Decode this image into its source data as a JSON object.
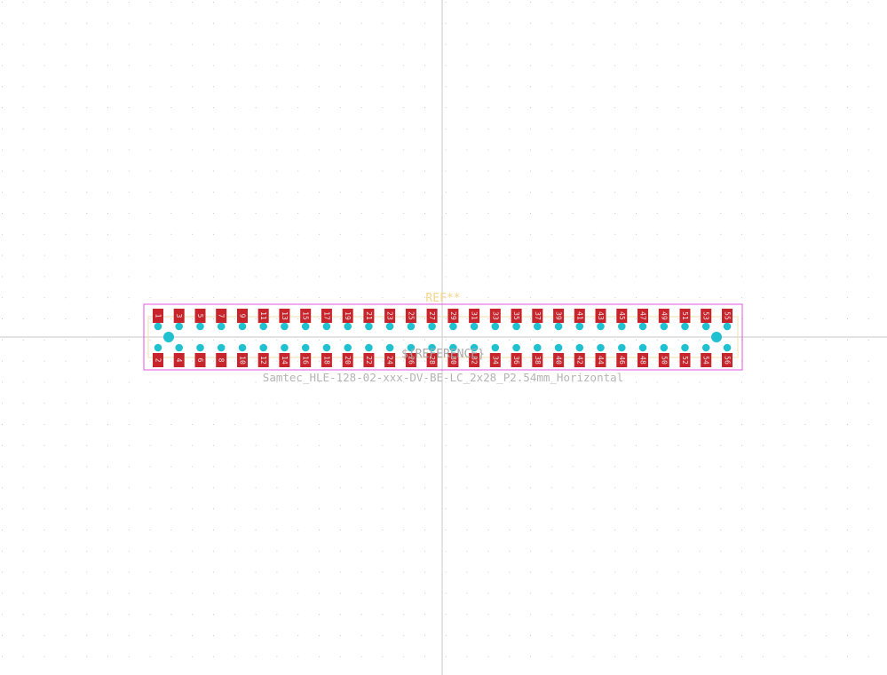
{
  "footprint": {
    "reference": "REF**",
    "value_field": "${REFERENCE}",
    "name": "Samtec_HLE-128-02-xxx-DV-BE-LC_2x28_P2.54mm_Horizontal",
    "pin_count": 56,
    "rows": 2,
    "columns": 28,
    "pitch_mm": 2.54,
    "top_row_pins": [
      "1",
      "3",
      "5",
      "7",
      "9",
      "11",
      "13",
      "15",
      "17",
      "19",
      "21",
      "23",
      "25",
      "27",
      "29",
      "31",
      "33",
      "35",
      "37",
      "39",
      "41",
      "43",
      "45",
      "47",
      "49",
      "51",
      "53",
      "55"
    ],
    "bottom_row_pins": [
      "2",
      "4",
      "6",
      "8",
      "10",
      "12",
      "14",
      "16",
      "18",
      "20",
      "22",
      "24",
      "26",
      "28",
      "30",
      "32",
      "34",
      "36",
      "38",
      "40",
      "42",
      "44",
      "46",
      "48",
      "50",
      "52",
      "54",
      "56"
    ]
  },
  "colors": {
    "background": "#ffffff",
    "grid_dot": "#c8c8c8",
    "axis": "#d2d2d2",
    "courtyard": "#e055e0",
    "silkscreen": "#f2e2a8",
    "pad": "#c8242c",
    "pad_label": "#e6e6e6",
    "through_hole": "#1fc0d0",
    "reference_text": "#f5d58a",
    "value_text": "#a8a8a8",
    "footprint_name": "#b4b4b4"
  }
}
